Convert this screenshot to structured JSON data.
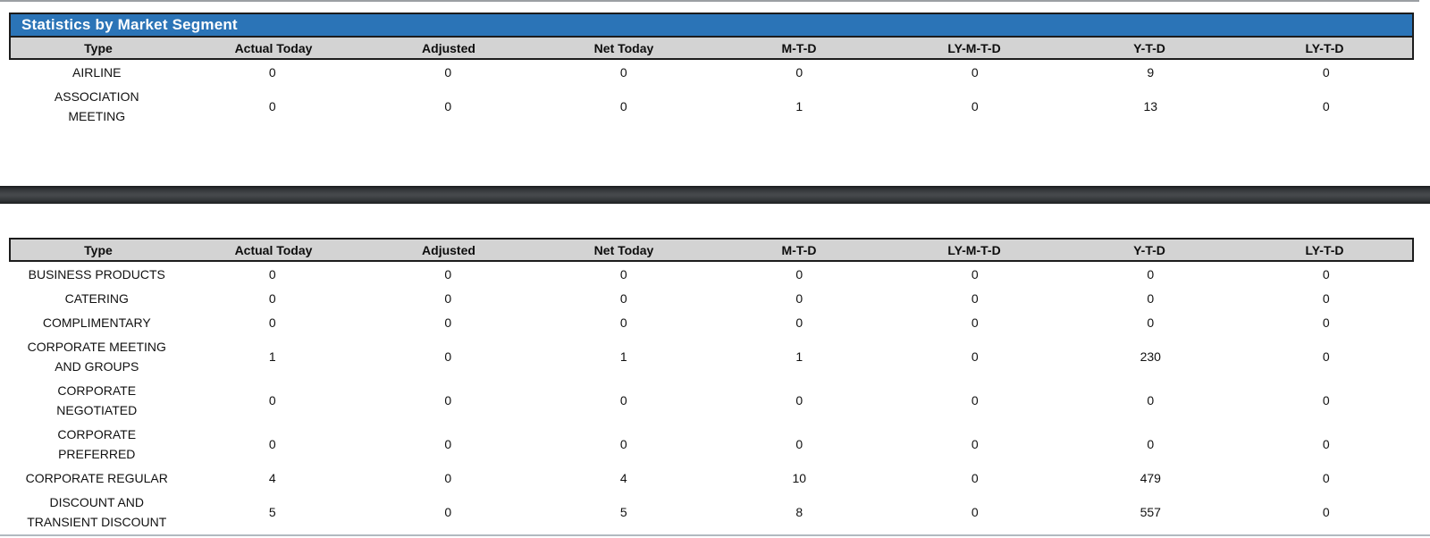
{
  "report": {
    "title": "Statistics by Market Segment"
  },
  "columns": [
    "Type",
    "Actual Today",
    "Adjusted",
    "Net Today",
    "M-T-D",
    "LY-M-T-D",
    "Y-T-D",
    "LY-T-D"
  ],
  "tables": [
    {
      "id": "top",
      "rows": [
        {
          "type": "AIRLINE",
          "values": [
            "0",
            "0",
            "0",
            "0",
            "0",
            "9",
            "0"
          ]
        },
        {
          "type": "ASSOCIATION\nMEETING",
          "values": [
            "0",
            "0",
            "0",
            "1",
            "0",
            "13",
            "0"
          ]
        }
      ]
    },
    {
      "id": "bottom",
      "rows": [
        {
          "type": "BUSINESS PRODUCTS",
          "values": [
            "0",
            "0",
            "0",
            "0",
            "0",
            "0",
            "0"
          ]
        },
        {
          "type": "CATERING",
          "values": [
            "0",
            "0",
            "0",
            "0",
            "0",
            "0",
            "0"
          ]
        },
        {
          "type": "COMPLIMENTARY",
          "values": [
            "0",
            "0",
            "0",
            "0",
            "0",
            "0",
            "0"
          ]
        },
        {
          "type": "CORPORATE MEETING\nAND GROUPS",
          "values": [
            "1",
            "0",
            "1",
            "1",
            "0",
            "230",
            "0"
          ]
        },
        {
          "type": "CORPORATE\nNEGOTIATED",
          "values": [
            "0",
            "0",
            "0",
            "0",
            "0",
            "0",
            "0"
          ]
        },
        {
          "type": "CORPORATE\nPREFERRED",
          "values": [
            "0",
            "0",
            "0",
            "0",
            "0",
            "0",
            "0"
          ]
        },
        {
          "type": "CORPORATE REGULAR",
          "values": [
            "4",
            "0",
            "4",
            "10",
            "0",
            "479",
            "0"
          ]
        },
        {
          "type": "DISCOUNT AND\nTRANSIENT DISCOUNT",
          "values": [
            "5",
            "0",
            "5",
            "8",
            "0",
            "557",
            "0"
          ]
        }
      ]
    }
  ],
  "colors": {
    "title_bar_blue": "#2b74b7",
    "header_gray": "#d3d3d3",
    "border_dark": "#1c1c1c",
    "splitter_dark": "#45484b",
    "bottom_line_gray": "#b1b9c0"
  }
}
